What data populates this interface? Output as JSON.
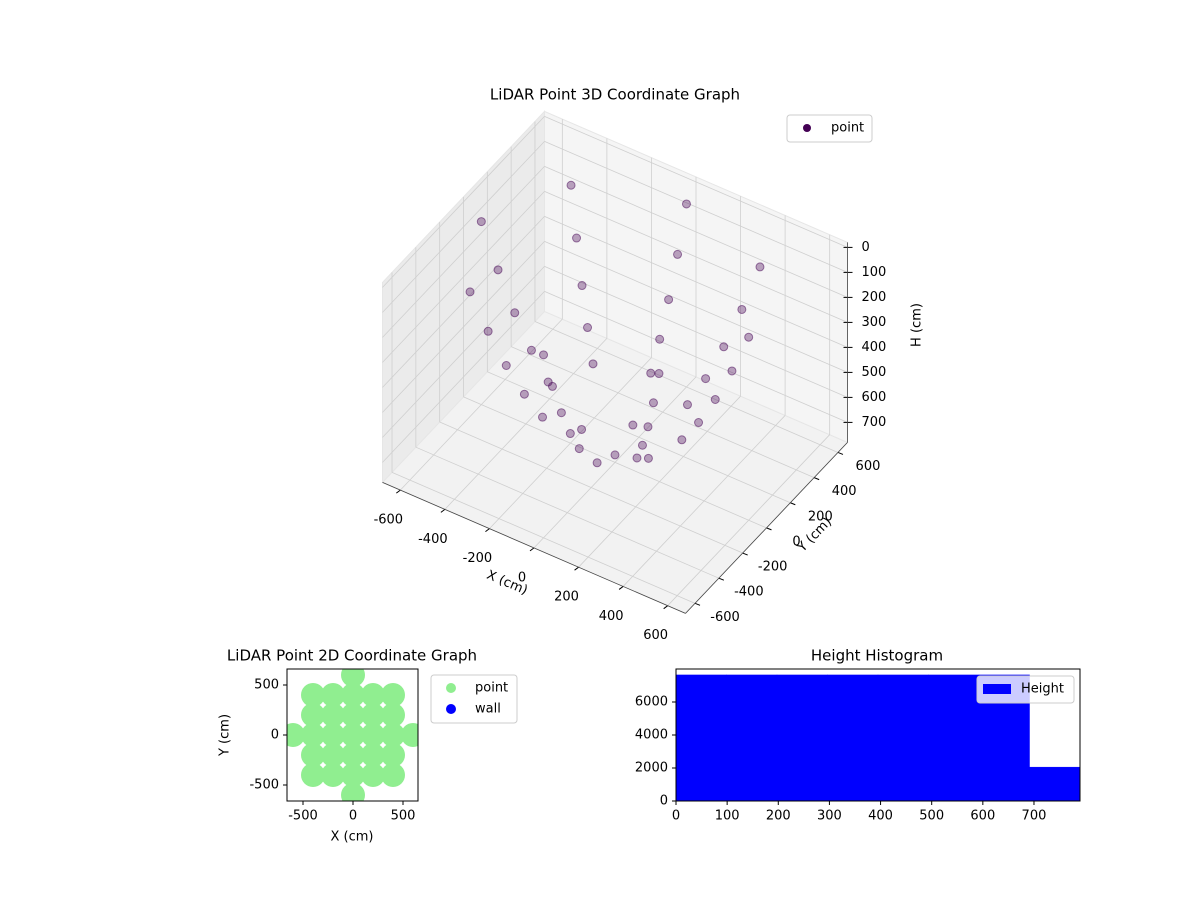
{
  "chart_data": [
    {
      "type": "scatter3d",
      "title": "LiDAR Point 3D Coordinate Graph",
      "xlabel": "X (cm)",
      "ylabel": "Y (cm)",
      "zlabel": "H (cm)",
      "xlim": [
        -680,
        680
      ],
      "ylim": [
        -680,
        680
      ],
      "zlim": [
        -20,
        780
      ],
      "z_inverted": true,
      "xticks": [
        -600,
        -400,
        -200,
        0,
        200,
        400,
        600
      ],
      "yticks": [
        -600,
        -400,
        -200,
        0,
        200,
        400,
        600
      ],
      "zticks": [
        0,
        100,
        200,
        300,
        400,
        500,
        600,
        700
      ],
      "grid": true,
      "legend": "upper right",
      "series": [
        {
          "name": "point",
          "color": "#440154",
          "x": [
            600,
            424,
            0,
            -424,
            -600,
            -424,
            0,
            424,
            525,
            371,
            0,
            -371,
            -525,
            -371,
            0,
            371,
            450,
            318,
            0,
            -318,
            -450,
            -318,
            0,
            318,
            375,
            265,
            0,
            -265,
            -375,
            -265,
            0,
            265,
            300,
            212,
            0,
            -212,
            -300,
            -212,
            0,
            212,
            150,
            0,
            -150,
            0,
            0
          ],
          "y": [
            0,
            424,
            600,
            424,
            0,
            -424,
            -600,
            -424,
            0,
            371,
            525,
            371,
            0,
            -371,
            -525,
            -371,
            0,
            318,
            450,
            318,
            0,
            -318,
            -450,
            -318,
            0,
            265,
            375,
            265,
            0,
            -265,
            -375,
            -265,
            0,
            212,
            300,
            212,
            0,
            -212,
            -300,
            -212,
            0,
            150,
            0,
            -150,
            0
          ],
          "z": [
            48,
            48,
            48,
            48,
            48,
            48,
            48,
            48,
            212,
            212,
            212,
            212,
            212,
            212,
            212,
            212,
            355,
            355,
            355,
            355,
            355,
            355,
            355,
            355,
            476,
            476,
            476,
            476,
            476,
            476,
            476,
            476,
            574,
            574,
            574,
            574,
            574,
            574,
            574,
            574,
            706,
            706,
            706,
            706,
            750
          ]
        }
      ]
    },
    {
      "type": "scatter",
      "title": "LiDAR Point 2D Coordinate Graph",
      "xlabel": "X (cm)",
      "ylabel": "Y (cm)",
      "xlim": [
        -660,
        650
      ],
      "ylim": [
        -660,
        660
      ],
      "xticks": [
        -500,
        0,
        500
      ],
      "yticks": [
        -500,
        0,
        500
      ],
      "legend": "outside right",
      "series": [
        {
          "name": "point",
          "color": "#90ee90",
          "x": [
            -600,
            -400,
            -400,
            -400,
            -400,
            -400,
            -200,
            -200,
            -200,
            -200,
            -200,
            0,
            0,
            0,
            0,
            0,
            0,
            0,
            200,
            200,
            200,
            200,
            200,
            400,
            400,
            400,
            400,
            400,
            600
          ],
          "y": [
            0,
            -400,
            -200,
            0,
            200,
            400,
            -400,
            -200,
            0,
            200,
            400,
            -600,
            -400,
            -200,
            0,
            200,
            400,
            600,
            -400,
            -200,
            0,
            200,
            400,
            -400,
            -200,
            0,
            200,
            400,
            0
          ]
        },
        {
          "name": "wall",
          "color": "#0000ff",
          "x": [],
          "y": []
        }
      ]
    },
    {
      "type": "histogram",
      "title": "Height Histogram",
      "bins": [
        0,
        98.75,
        197.5,
        296.25,
        395,
        493.75,
        592.5,
        691.25,
        790
      ],
      "series": [
        {
          "name": "Height",
          "color": "#0000ff",
          "values": [
            7640,
            7640,
            7640,
            7640,
            7640,
            7640,
            7640,
            2050
          ]
        }
      ],
      "xlim": [
        0,
        790
      ],
      "ylim": [
        0,
        8000
      ],
      "xticks": [
        0,
        100,
        200,
        300,
        400,
        500,
        600,
        700
      ],
      "yticks": [
        0,
        2000,
        4000,
        6000
      ],
      "legend": "upper right"
    }
  ]
}
